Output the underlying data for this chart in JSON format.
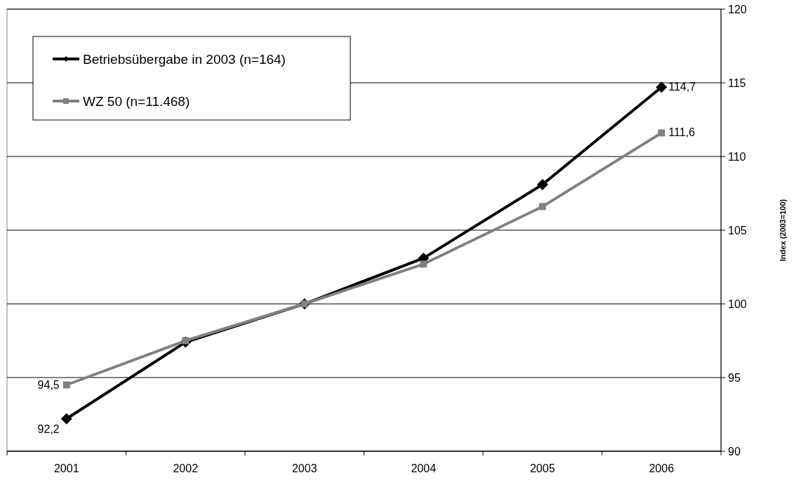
{
  "chart_data": {
    "type": "line",
    "categories": [
      "2001",
      "2002",
      "2003",
      "2004",
      "2005",
      "2006"
    ],
    "series": [
      {
        "name": "Betriebsübergabe in 2003 (n=164)",
        "color": "#000000",
        "marker": "diamond",
        "values": [
          92.2,
          97.4,
          100,
          103.1,
          108.1,
          114.7
        ],
        "value_labels": [
          "92,2",
          null,
          null,
          null,
          null,
          "114,7"
        ]
      },
      {
        "name": "WZ 50 (n=11.468)",
        "color": "#808080",
        "marker": "square",
        "values": [
          94.5,
          97.5,
          100,
          102.7,
          106.6,
          111.6
        ],
        "value_labels": [
          "94,5",
          null,
          null,
          null,
          null,
          "111,6"
        ]
      }
    ],
    "ylabel": "Index (2003=100)",
    "ylim": [
      90,
      120
    ],
    "yticks": [
      90,
      95,
      100,
      105,
      110,
      115,
      120
    ],
    "grid": "y",
    "legend": "top left"
  }
}
